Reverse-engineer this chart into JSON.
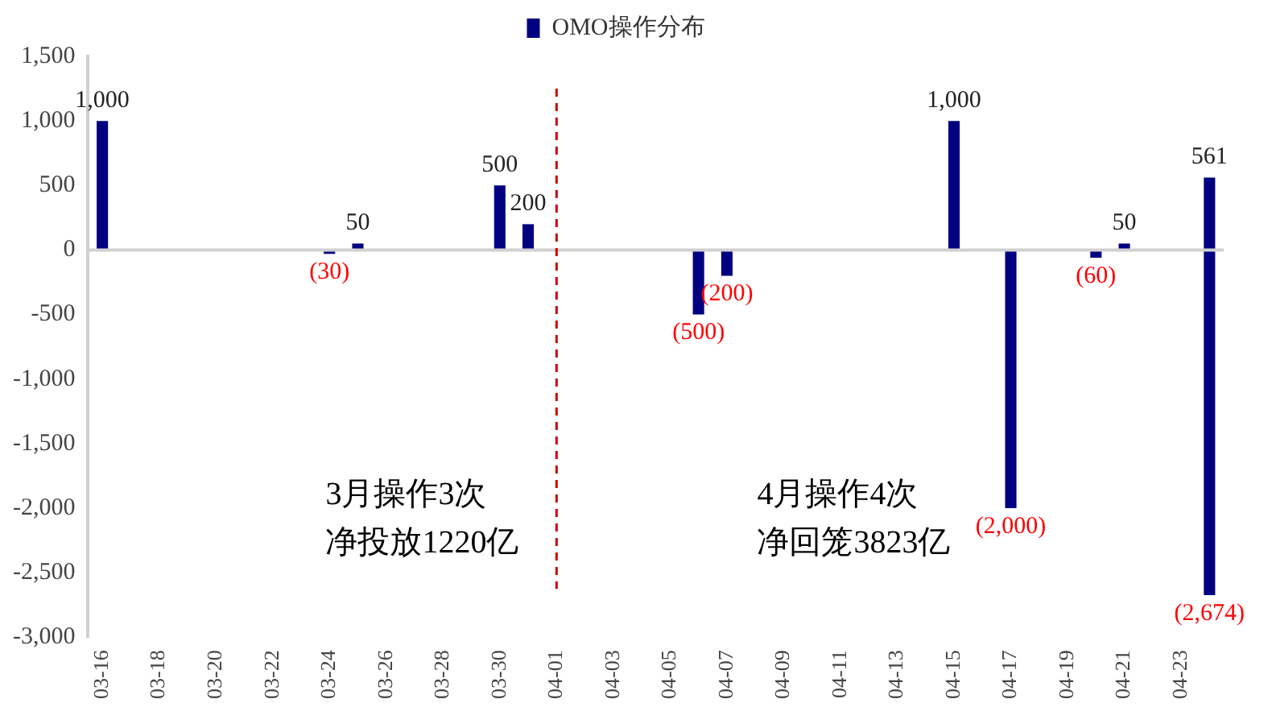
{
  "chart_data": {
    "type": "bar",
    "stacked": true,
    "categories": [
      "03-16",
      null,
      "03-18",
      null,
      "03-20",
      null,
      "03-22",
      null,
      "03-24",
      null,
      "03-26",
      null,
      "03-28",
      null,
      "03-30",
      null,
      "04-01",
      null,
      "04-03",
      null,
      "04-05",
      null,
      "04-07",
      null,
      "04-09",
      null,
      "04-11",
      null,
      "04-13",
      null,
      "04-15",
      null,
      "04-17",
      null,
      "04-19",
      null,
      "04-21",
      null,
      "04-23",
      null
    ],
    "series": [
      {
        "name": "OMO操作分布",
        "color": "#000080",
        "values": [
          1000,
          null,
          null,
          null,
          null,
          null,
          null,
          null,
          -30,
          50,
          null,
          null,
          null,
          null,
          500,
          200,
          null,
          null,
          null,
          null,
          null,
          -500,
          -200,
          null,
          null,
          null,
          null,
          null,
          null,
          null,
          1000,
          null,
          -2000,
          null,
          null,
          -60,
          50,
          null,
          null,
          561
        ],
        "value_labels": [
          "1,000",
          null,
          null,
          null,
          null,
          null,
          null,
          null,
          "(30)",
          "50",
          null,
          null,
          null,
          null,
          "500",
          "200",
          null,
          null,
          null,
          null,
          null,
          "(500)",
          "(200)",
          null,
          null,
          null,
          null,
          null,
          null,
          null,
          "1,000",
          null,
          "(2,000)",
          null,
          null,
          "(60)",
          "50",
          null,
          null,
          "561"
        ]
      },
      {
        "color": "#000080",
        "values": [
          null,
          null,
          null,
          null,
          null,
          null,
          null,
          null,
          null,
          null,
          null,
          null,
          null,
          null,
          null,
          null,
          null,
          null,
          null,
          null,
          null,
          null,
          null,
          null,
          null,
          null,
          null,
          null,
          null,
          null,
          null,
          null,
          null,
          null,
          null,
          null,
          null,
          null,
          null,
          -2674
        ],
        "value_labels": [
          null,
          null,
          null,
          null,
          null,
          null,
          null,
          null,
          null,
          null,
          null,
          null,
          null,
          null,
          null,
          null,
          null,
          null,
          null,
          null,
          null,
          null,
          null,
          null,
          null,
          null,
          null,
          null,
          null,
          null,
          null,
          null,
          null,
          null,
          null,
          null,
          null,
          null,
          null,
          "(2,674)"
        ]
      }
    ],
    "ylim": [
      -3000,
      1500
    ],
    "yticks": [
      {
        "value": 1500,
        "label": "1,500"
      },
      {
        "value": 1000,
        "label": "1,000"
      },
      {
        "value": 500,
        "label": "500"
      },
      {
        "value": 0,
        "label": "0"
      },
      {
        "value": -500,
        "label": "-500"
      },
      {
        "value": -1000,
        "label": "-1,000"
      },
      {
        "value": -1500,
        "label": "-1,500"
      },
      {
        "value": -2000,
        "label": "-2,000"
      },
      {
        "value": -2500,
        "label": "-2,500"
      },
      {
        "value": -3000,
        "label": "-3,000"
      }
    ],
    "grid": false,
    "legend": "top",
    "ref_lines": [
      {
        "axis": "x",
        "value": "04-01",
        "color": "#cc0000",
        "line_style": "dashed"
      }
    ],
    "annotations": [
      "3月操作3次净投放1220亿",
      "4月操作4次净回笼3823亿"
    ]
  }
}
